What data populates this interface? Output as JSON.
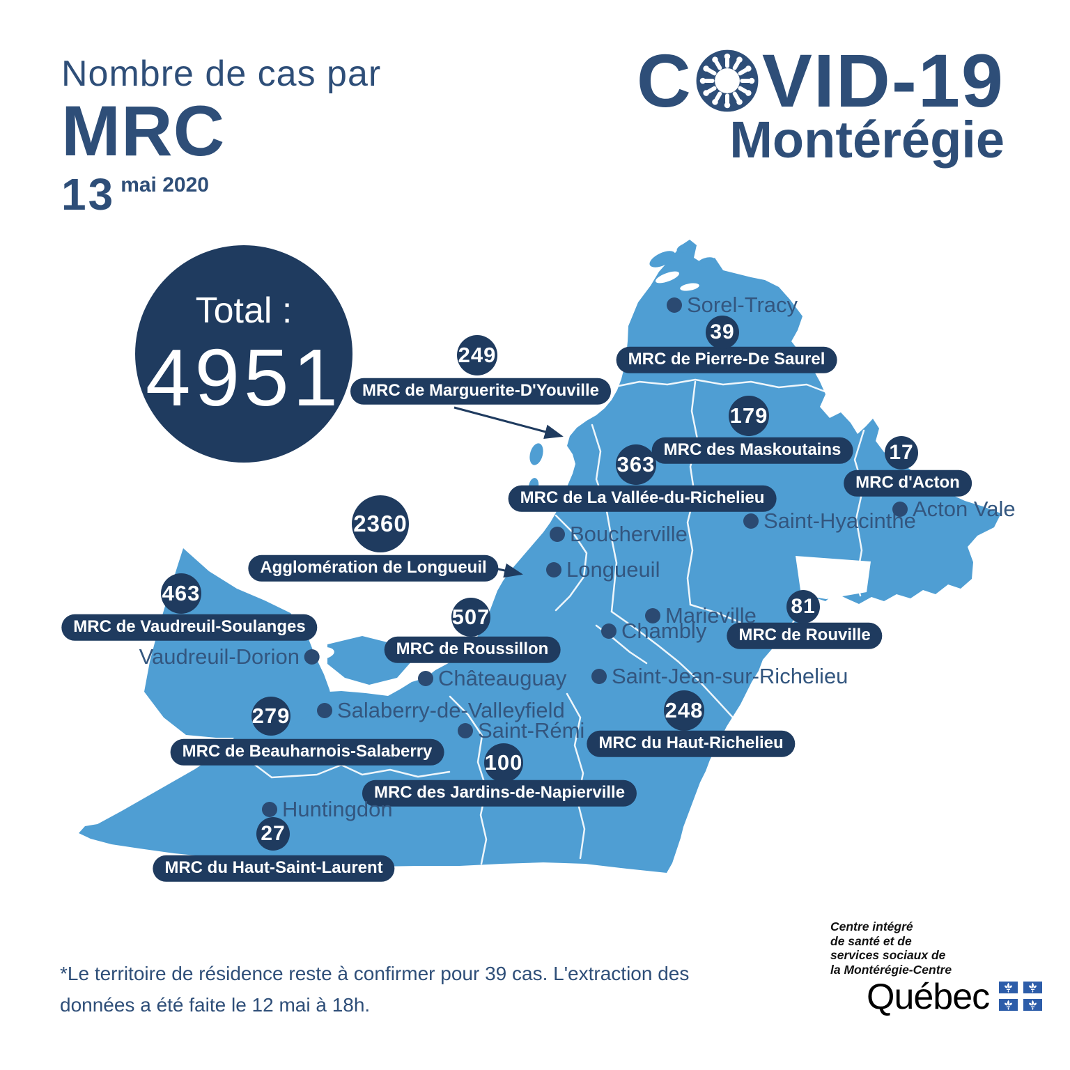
{
  "title": {
    "line1": "Nombre de cas par",
    "line2": "MRC",
    "date_number": "13",
    "date_suffix": "mai 2020"
  },
  "brand": {
    "covid_left": "C",
    "covid_right": "VID-19",
    "region": "Montérégie",
    "virus_icon": "coronavirus"
  },
  "total": {
    "label": "Total :",
    "value": "4951"
  },
  "mrcs": [
    {
      "id": "pierre-de-saurel",
      "name": "MRC de Pierre-De Saurel",
      "cases": "39"
    },
    {
      "id": "maskoutains",
      "name": "MRC des Maskoutains",
      "cases": "179"
    },
    {
      "id": "acton",
      "name": "MRC d'Acton",
      "cases": "17"
    },
    {
      "id": "marguerite-dyouville",
      "name": "MRC de Marguerite-D'Youville",
      "cases": "249"
    },
    {
      "id": "vallee-du-richelieu",
      "name": "MRC de La Vallée-du-Richelieu",
      "cases": "363"
    },
    {
      "id": "longueuil",
      "name": "Agglomération de Longueuil",
      "cases": "2360"
    },
    {
      "id": "vaudreuil-soulanges",
      "name": "MRC de Vaudreuil-Soulanges",
      "cases": "463"
    },
    {
      "id": "roussillon",
      "name": "MRC de Roussillon",
      "cases": "507"
    },
    {
      "id": "rouville",
      "name": "MRC de Rouville",
      "cases": "81"
    },
    {
      "id": "haut-richelieu",
      "name": "MRC du Haut-Richelieu",
      "cases": "248"
    },
    {
      "id": "beauharnois-salaberry",
      "name": "MRC de Beauharnois-Salaberry",
      "cases": "279"
    },
    {
      "id": "jardins-de-napierville",
      "name": "MRC des Jardins-de-Napierville",
      "cases": "100"
    },
    {
      "id": "haut-saint-laurent",
      "name": "MRC du Haut-Saint-Laurent",
      "cases": "27"
    }
  ],
  "cities": [
    {
      "id": "sorel-tracy",
      "name": "Sorel-Tracy"
    },
    {
      "id": "saint-hyacinthe",
      "name": "Saint-Hyacinthe"
    },
    {
      "id": "acton-vale",
      "name": "Acton Vale"
    },
    {
      "id": "boucherville",
      "name": "Boucherville"
    },
    {
      "id": "longueuil-city",
      "name": "Longueuil"
    },
    {
      "id": "marieville",
      "name": "Marieville"
    },
    {
      "id": "chambly",
      "name": "Chambly"
    },
    {
      "id": "saint-jean-sur-richelieu",
      "name": "Saint-Jean-sur-Richelieu"
    },
    {
      "id": "vaudreuil-dorion",
      "name": "Vaudreuil-Dorion"
    },
    {
      "id": "chateauguay",
      "name": "Châteauguay"
    },
    {
      "id": "salaberry-de-valleyfield",
      "name": "Salaberry-de-Valleyfield"
    },
    {
      "id": "saint-remi",
      "name": "Saint-Rémi"
    },
    {
      "id": "huntingdon",
      "name": "Huntingdon"
    }
  ],
  "footnote": {
    "line1": "*Le territoire de résidence reste à confirmer pour 39 cas.  L'extraction des",
    "line2": "données a été faite le 12 mai à 18h."
  },
  "org": {
    "line1": "Centre intégré",
    "line2": "de santé et de",
    "line3": "services sociaux de",
    "line4": "la Montérégie-Centre",
    "wordmark": "Québec"
  },
  "colors": {
    "navy": "#1f3b5f",
    "title_blue": "#2e4e78",
    "map_blue": "#4f9ed3",
    "city_text": "#33567f",
    "flag_blue": "#2d5da9"
  }
}
